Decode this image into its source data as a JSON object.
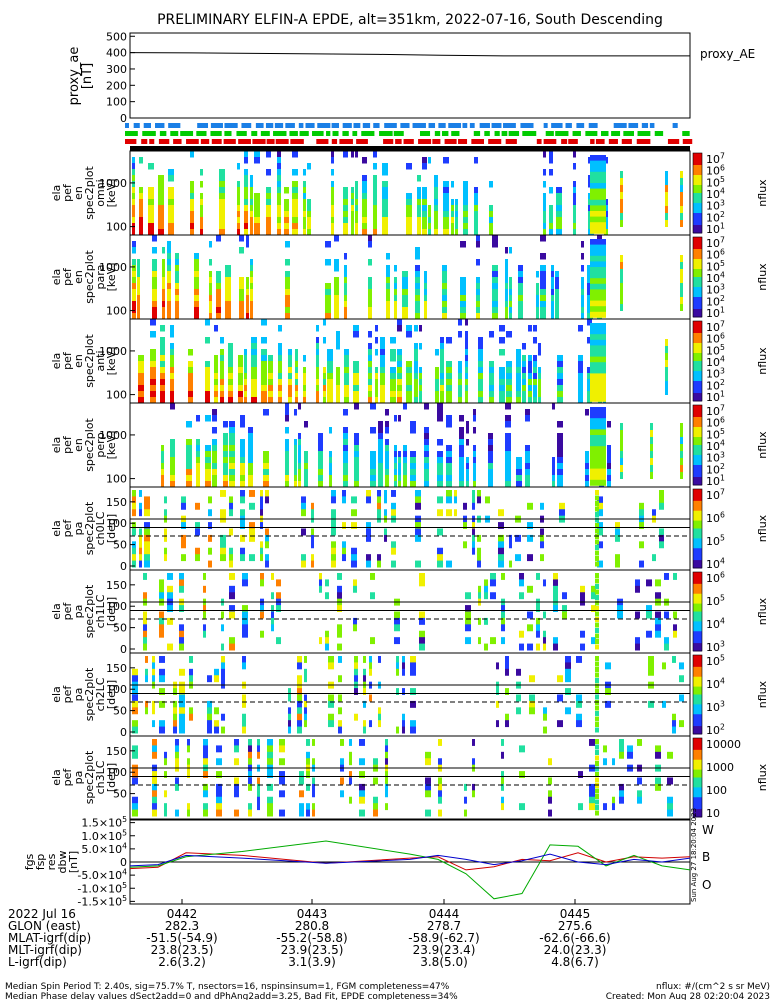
{
  "title": "PRELIMINARY ELFIN-A EPDE, alt=351km, 2022-07-16, South Descending",
  "colors": {
    "w": "#d00000",
    "b": "#00aa00",
    "o": "#0000cc",
    "proxy": "#000000"
  },
  "chart_data": [
    {
      "type": "line",
      "panel": "proxy_ae",
      "ylabel": [
        "proxy_ae",
        "[nT]"
      ],
      "legend": "proxy_AE",
      "yticks": [
        "500",
        "400",
        "300",
        "200",
        "100",
        "0"
      ],
      "ylim": [
        0,
        520
      ],
      "series": [
        {
          "name": "proxy_AE",
          "values": [
            400,
            398,
            395,
            392,
            389,
            384,
            380,
            380,
            380,
            380
          ]
        }
      ]
    },
    {
      "type": "heatmap",
      "panel": "en_spec_all",
      "ylabel": [
        "ela",
        "pef",
        "en",
        "spec2plot",
        "omni",
        "[keV]"
      ],
      "yticks": [
        "1000",
        "100"
      ],
      "cbar_title": "nflux",
      "cbar_ticks": [
        "10^7",
        "10^6",
        "10^5",
        "10^4",
        "10^3",
        "10^2",
        "10^1"
      ]
    },
    {
      "type": "heatmap",
      "panel": "en_spec_para",
      "ylabel": [
        "ela",
        "pef",
        "en",
        "spec2plot",
        "para",
        "[keV]"
      ],
      "yticks": [
        "1000",
        "100"
      ],
      "cbar_title": "nflux",
      "cbar_ticks": [
        "10^7",
        "10^6",
        "10^5",
        "10^4",
        "10^3",
        "10^2",
        "10^1"
      ]
    },
    {
      "type": "heatmap",
      "panel": "en_spec_anti",
      "ylabel": [
        "ela",
        "pef",
        "en",
        "spec2plot",
        "anti",
        "[keV]"
      ],
      "yticks": [
        "1000",
        "100"
      ],
      "cbar_title": "nflux",
      "cbar_ticks": [
        "10^7",
        "10^6",
        "10^5",
        "10^4",
        "10^3",
        "10^2",
        "10^1"
      ]
    },
    {
      "type": "heatmap",
      "panel": "en_spec_perp",
      "ylabel": [
        "ela",
        "pef",
        "en",
        "spec2plot",
        "perp",
        "[keV]"
      ],
      "yticks": [
        "1000",
        "100"
      ],
      "cbar_title": "nflux",
      "cbar_ticks": [
        "10^7",
        "10^6",
        "10^5",
        "10^4",
        "10^3",
        "10^2",
        "10^1"
      ]
    },
    {
      "type": "heatmap",
      "panel": "pa_spec_ch0LC",
      "ylabel": [
        "ela",
        "pef",
        "pa",
        "spec2plot",
        "ch0LC",
        "[deg]"
      ],
      "yticks": [
        "150",
        "100",
        "50",
        "0"
      ],
      "cbar_title": "nflux",
      "cbar_ticks": [
        "10^7",
        "10^6",
        "10^5",
        "10^4"
      ]
    },
    {
      "type": "heatmap",
      "panel": "pa_spec_ch1LC",
      "ylabel": [
        "ela",
        "pef",
        "pa",
        "spec2plot",
        "ch1LC",
        "[deg]"
      ],
      "yticks": [
        "150",
        "100",
        "50",
        "0"
      ],
      "cbar_title": "nflux",
      "cbar_ticks": [
        "10^6",
        "10^5",
        "10^4",
        "10^3"
      ]
    },
    {
      "type": "heatmap",
      "panel": "pa_spec_ch2LC",
      "ylabel": [
        "ela",
        "pef",
        "pa",
        "spec2plot",
        "ch2LC",
        "[deg]"
      ],
      "yticks": [
        "150",
        "100",
        "50",
        "0"
      ],
      "cbar_title": "nflux",
      "cbar_ticks": [
        "10^5",
        "10^4",
        "10^3",
        "10^2"
      ]
    },
    {
      "type": "heatmap",
      "panel": "pa_spec_ch3LC",
      "ylabel": [
        "ela",
        "pef",
        "pa",
        "spec2plot",
        "ch3LC",
        "[deg]"
      ],
      "yticks": [
        "150",
        "100",
        "50"
      ],
      "cbar_title": "nflux",
      "cbar_ticks": [
        "10000",
        "1000",
        "100",
        "10"
      ]
    },
    {
      "type": "line",
      "panel": "fgm_res_dbw",
      "ylabel": [
        "fgs",
        "fsp",
        "res",
        "dbw",
        "[nT]"
      ],
      "yticks": [
        "1.5×10^5",
        "1.0×10^5",
        "5.0×10^4",
        "0",
        "-5.0×10^4",
        "-1.0×10^5",
        "-1.5×10^5"
      ],
      "ylim": [
        -160000,
        160000
      ],
      "side_label": "Sun Aug 27 18:20:04 2023",
      "series": [
        {
          "name": "W",
          "x": [
            0.0,
            0.05,
            0.1,
            0.2,
            0.35,
            0.5,
            0.55,
            0.6,
            0.65,
            0.7,
            0.75,
            0.8,
            0.85,
            0.9,
            0.95,
            1.0
          ],
          "values": [
            -25000,
            -20000,
            35000,
            25000,
            -5000,
            15000,
            20000,
            -30000,
            -18000,
            10000,
            5000,
            35000,
            0,
            20000,
            15000,
            20000
          ]
        },
        {
          "name": "B",
          "x": [
            0.0,
            0.05,
            0.1,
            0.2,
            0.35,
            0.5,
            0.55,
            0.6,
            0.65,
            0.7,
            0.75,
            0.8,
            0.85,
            0.9,
            0.95,
            1.0
          ],
          "values": [
            -20000,
            -15000,
            20000,
            40000,
            80000,
            30000,
            10000,
            -45000,
            -140000,
            -120000,
            65000,
            60000,
            -15000,
            25000,
            -15000,
            -30000
          ]
        },
        {
          "name": "O",
          "x": [
            0.0,
            0.05,
            0.1,
            0.2,
            0.35,
            0.5,
            0.55,
            0.6,
            0.65,
            0.7,
            0.75,
            0.8,
            0.85,
            0.9,
            0.95,
            1.0
          ],
          "values": [
            -15000,
            -10000,
            25000,
            15000,
            -5000,
            10000,
            25000,
            10000,
            -10000,
            5000,
            30000,
            0,
            -10000,
            10000,
            0,
            15000
          ]
        }
      ]
    }
  ],
  "coords": {
    "rows": [
      {
        "label": "2022 Jul 16",
        "values": [
          "0442",
          "0443",
          "0444",
          "0445"
        ]
      },
      {
        "label": "GLON (east)",
        "values": [
          "282.3",
          "280.8",
          "278.7",
          "275.6"
        ]
      },
      {
        "label": "MLAT-igrf(dip)",
        "values": [
          "-51.5(-54.9)",
          "-55.2(-58.8)",
          "-58.9(-62.7)",
          "-62.6(-66.6)"
        ]
      },
      {
        "label": "MLT-igrf(dip)",
        "values": [
          "23.8(23.5)",
          "23.9(23.5)",
          "23.9(23.4)",
          "24.0(23.3)"
        ]
      },
      {
        "label": "L-igrf(dip)",
        "values": [
          "2.6(3.2)",
          "3.1(3.9)",
          "3.8(5.0)",
          "4.8(6.7)"
        ]
      }
    ]
  },
  "footer": {
    "line1": "Median Spin Period T: 2.40s, sig=75.7% T, nsectors=16, nspinsinsum=1, FGM completeness=47%",
    "line2": "Median Phase delay values dSect2add=0 and dPhAng2add=3.25, Bad Fit, EPDE completeness=34%",
    "units": "nflux: #/(cm^2 s sr MeV)",
    "created": "Created: Mon Aug 28 02:20:04 2023"
  }
}
